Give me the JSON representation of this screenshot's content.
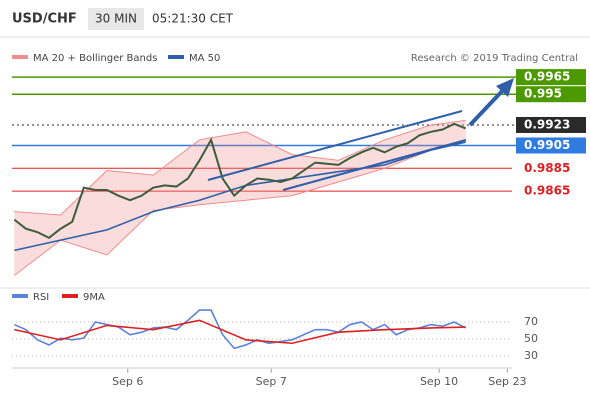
{
  "header": {
    "symbol": "USD/CHF",
    "interval": "30 MIN",
    "time": "05:21:30 CET"
  },
  "chart_data": [
    {
      "type": "line",
      "annotation": "Research © 2019 Trading Central",
      "x": [
        0,
        1,
        2,
        3,
        4,
        5,
        6,
        7,
        8,
        9,
        10,
        11,
        12,
        13,
        14,
        15,
        16,
        17,
        18,
        19,
        20,
        21,
        22,
        23,
        24,
        25,
        26,
        27,
        28,
        29,
        30,
        31,
        32,
        33,
        34,
        35,
        36,
        37,
        38,
        39
      ],
      "values": [
        0.984,
        0.9832,
        0.9829,
        0.9824,
        0.9832,
        0.9838,
        0.9868,
        0.9866,
        0.9866,
        0.9861,
        0.9857,
        0.9861,
        0.9868,
        0.987,
        0.9869,
        0.9876,
        0.9892,
        0.991,
        0.9876,
        0.9861,
        0.987,
        0.9876,
        0.9875,
        0.9873,
        0.9876,
        0.9883,
        0.989,
        0.9889,
        0.9888,
        0.9894,
        0.9899,
        0.9903,
        0.9899,
        0.9904,
        0.9907,
        0.9914,
        0.9917,
        0.9919,
        0.9924,
        0.992
      ],
      "color": "#3d5c3d",
      "bands": {
        "name": "MA 20 + Bollinger Bands",
        "color": "#f08c8c",
        "x": [
          0,
          4,
          8,
          12,
          16,
          20,
          24,
          28,
          32,
          36,
          39
        ],
        "upper": [
          0.9847,
          0.9844,
          0.9883,
          0.9879,
          0.991,
          0.9917,
          0.9897,
          0.9892,
          0.991,
          0.9923,
          0.9927
        ],
        "lower": [
          0.9791,
          0.9822,
          0.9809,
          0.9848,
          0.9853,
          0.9857,
          0.9861,
          0.9873,
          0.9885,
          0.9901,
          0.991
        ]
      },
      "series": [
        {
          "name": "MA 50",
          "color": "#2f5fa8",
          "x": [
            0,
            4,
            8,
            12,
            16,
            20,
            24,
            28,
            32,
            36,
            39
          ],
          "values": [
            0.9813,
            0.9822,
            0.9831,
            0.9847,
            0.9857,
            0.987,
            0.9876,
            0.9882,
            0.9888,
            0.9901,
            0.9908
          ]
        }
      ],
      "levels": [
        {
          "value": 0.9965,
          "color": "#4c9a00",
          "boxed": true,
          "dash": false
        },
        {
          "value": 0.995,
          "color": "#4c9a00",
          "boxed": true,
          "dash": false
        },
        {
          "value": 0.9923,
          "color": "#2a2a2a",
          "boxed": true,
          "dash": true
        },
        {
          "value": 0.9905,
          "color": "#2f7be0",
          "boxed": true,
          "dash": false
        },
        {
          "value": 0.9885,
          "color": "#e02020",
          "boxed": false,
          "dash": false
        },
        {
          "value": 0.9865,
          "color": "#e02020",
          "boxed": false,
          "dash": false
        }
      ],
      "xlim": [
        -0.2,
        43
      ],
      "ylim": [
        0.978,
        0.998
      ]
    },
    {
      "type": "line",
      "x": [
        0,
        1,
        2,
        3,
        4,
        5,
        6,
        7,
        8,
        9,
        10,
        11,
        12,
        13,
        14,
        15,
        16,
        17,
        18,
        19,
        20,
        21,
        22,
        23,
        24,
        25,
        26,
        27,
        28,
        29,
        30,
        31,
        32,
        33,
        34,
        35,
        36,
        37,
        38,
        39
      ],
      "series": [
        {
          "name": "RSI",
          "color": "#5b84d8",
          "values": [
            67,
            61,
            49,
            43,
            51,
            49,
            51,
            70,
            67,
            64,
            55,
            58,
            63,
            64,
            61,
            72,
            84,
            84,
            55,
            39,
            43,
            49,
            45,
            47,
            49,
            55,
            61,
            61,
            58,
            67,
            70,
            61,
            67,
            55,
            61,
            63,
            67,
            65,
            70,
            63
          ]
        },
        {
          "name": "9MA",
          "color": "#e02020",
          "x": [
            0,
            4,
            8,
            12,
            16,
            20,
            24,
            28,
            32,
            36,
            39
          ],
          "values": [
            61,
            49,
            66,
            61,
            72,
            49,
            45,
            58,
            61,
            63,
            64
          ]
        }
      ],
      "xlim": [
        -0.2,
        43
      ],
      "ylim": [
        15,
        100
      ],
      "yticks": [
        30,
        50,
        70
      ],
      "xticks": [
        {
          "value": 9.8,
          "label": "Sep 6"
        },
        {
          "value": 22.2,
          "label": "Sep 7"
        },
        {
          "value": 36.7,
          "label": "Sep 10"
        },
        {
          "value": 42.6,
          "label": "Sep 23"
        }
      ]
    }
  ]
}
